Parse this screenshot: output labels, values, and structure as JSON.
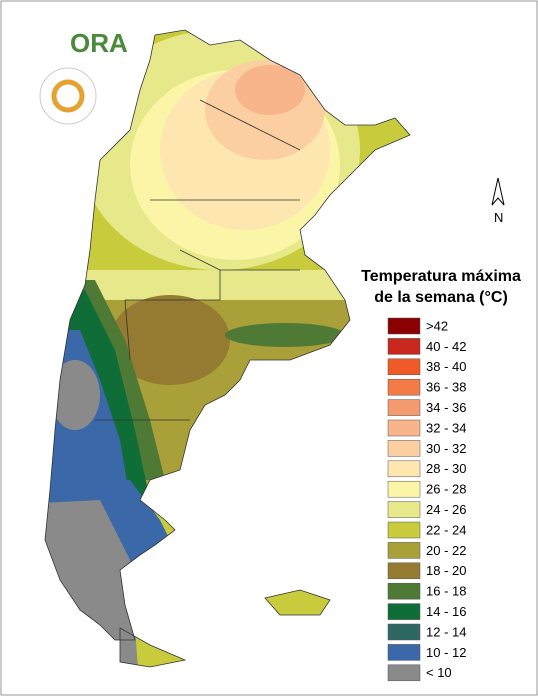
{
  "logo": {
    "text": "ORA"
  },
  "north": "N",
  "legend": {
    "title": [
      "Temperatura máxima",
      "de la semana (°C)"
    ],
    "items": [
      {
        "label": ">42",
        "color": "#8b0000"
      },
      {
        "label": "40 - 42",
        "color": "#c8281e"
      },
      {
        "label": "38 - 40",
        "color": "#f05a28"
      },
      {
        "label": "36 - 38",
        "color": "#f47a46"
      },
      {
        "label": "34 - 36",
        "color": "#f59a6e"
      },
      {
        "label": "32 - 34",
        "color": "#f8b48a"
      },
      {
        "label": "30 - 32",
        "color": "#fbcfa2"
      },
      {
        "label": "28 - 30",
        "color": "#fde6b0"
      },
      {
        "label": "26 - 28",
        "color": "#fbf5a8"
      },
      {
        "label": "24 - 26",
        "color": "#e6e88a"
      },
      {
        "label": "22 - 24",
        "color": "#c8cc3c"
      },
      {
        "label": "20 - 22",
        "color": "#aaa03a"
      },
      {
        "label": "18 - 20",
        "color": "#957a32"
      },
      {
        "label": "16 - 18",
        "color": "#4f7a36"
      },
      {
        "label": "14 - 16",
        "color": "#0f6e37"
      },
      {
        "label": "12 - 14",
        "color": "#2e6862"
      },
      {
        "label": "10 - 12",
        "color": "#3a68a8"
      },
      {
        "label": "< 10",
        "color": "#8a8a8a"
      }
    ]
  }
}
